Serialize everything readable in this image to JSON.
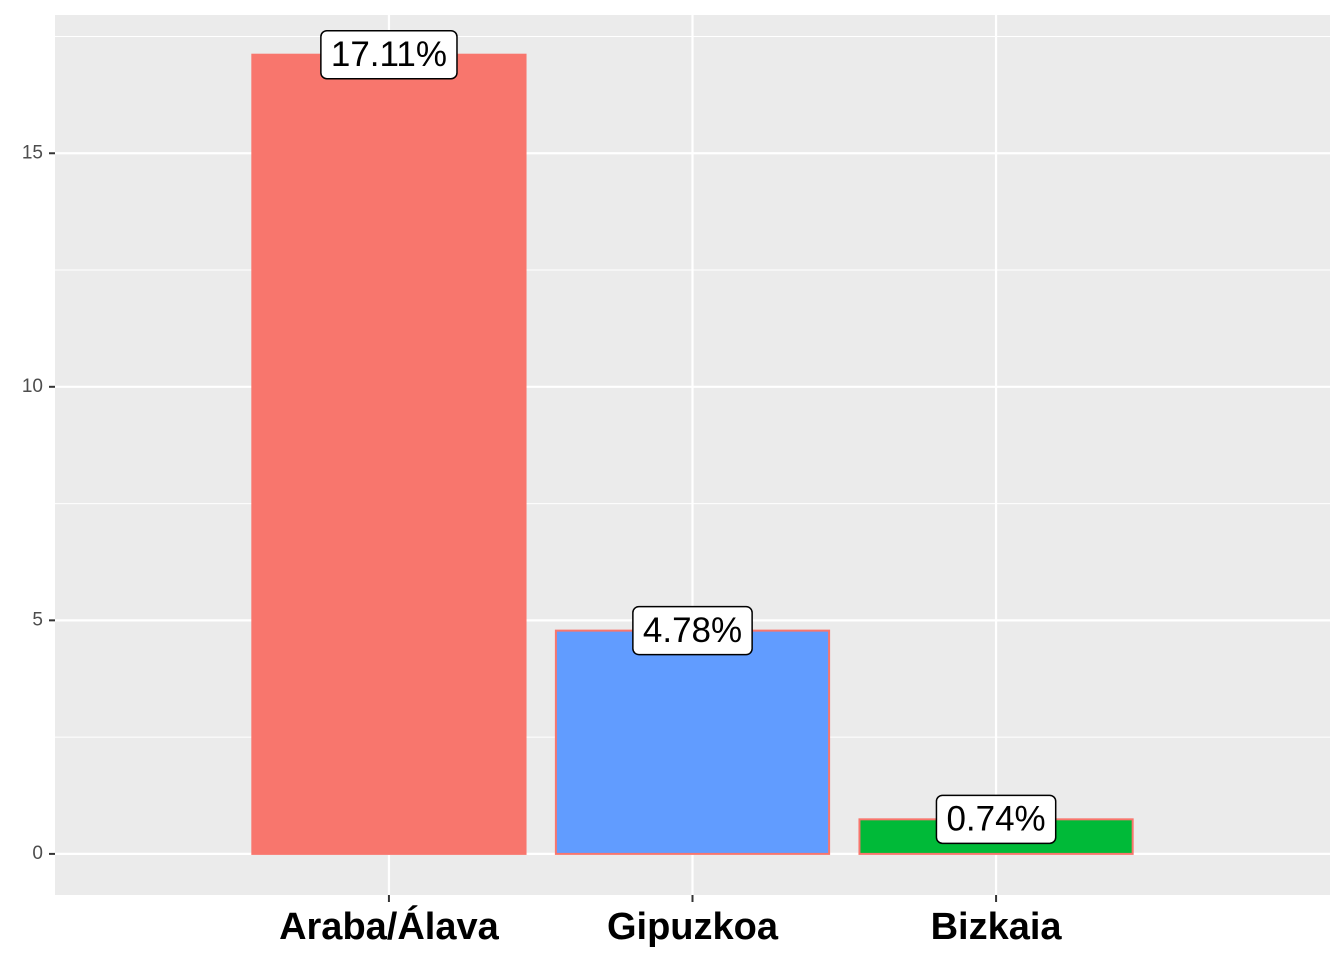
{
  "chart_data": {
    "type": "bar",
    "categories": [
      "Araba/Álava",
      "Gipuzkoa",
      "Bizkaia"
    ],
    "values": [
      17.11,
      4.78,
      0.74
    ],
    "value_labels": [
      "17.11%",
      "4.78%",
      "0.74%"
    ],
    "colors": [
      "#F8766D",
      "#619CFF",
      "#00BA38"
    ],
    "edgecolor": "#F8766D",
    "ylim": [
      -0.88,
      17.96
    ],
    "yticks": [
      0,
      5,
      10,
      15
    ],
    "grid": true
  }
}
